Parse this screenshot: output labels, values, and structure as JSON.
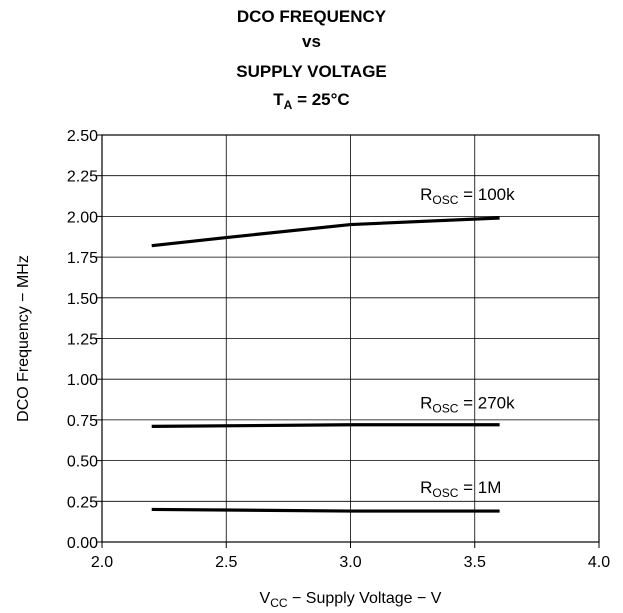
{
  "chart_data": {
    "type": "line",
    "title": {
      "line1": "DCO FREQUENCY",
      "line2": "vs",
      "line3": "SUPPLY VOLTAGE",
      "line4_main": "T",
      "line4_sub": "A",
      "line4_rest": " = 25°C"
    },
    "xlabel": {
      "main1": "V",
      "sub": "CC",
      "rest": " − Supply Voltage − V"
    },
    "ylabel": "DCO Frequency − MHz",
    "xlim": [
      2.0,
      4.0
    ],
    "ylim": [
      0.0,
      2.5
    ],
    "x_ticks": [
      "2.0",
      "2.5",
      "3.0",
      "3.5",
      "4.0"
    ],
    "y_ticks": [
      "0.00",
      "0.25",
      "0.50",
      "0.75",
      "1.00",
      "1.25",
      "1.50",
      "1.75",
      "2.00",
      "2.25",
      "2.50"
    ],
    "grid": true,
    "series": [
      {
        "label_main": "R",
        "label_sub": "OSC",
        "label_rest": " = 100k",
        "x": [
          2.2,
          2.5,
          3.0,
          3.6
        ],
        "y": [
          1.82,
          1.87,
          1.95,
          1.99
        ],
        "label_at": [
          3.28,
          2.1
        ]
      },
      {
        "label_main": "R",
        "label_sub": "OSC",
        "label_rest": " = 270k",
        "x": [
          2.2,
          3.0,
          3.6
        ],
        "y": [
          0.71,
          0.72,
          0.72
        ],
        "label_at": [
          3.28,
          0.82
        ]
      },
      {
        "label_main": "R",
        "label_sub": "OSC",
        "label_rest": " = 1M",
        "x": [
          2.2,
          3.0,
          3.6
        ],
        "y": [
          0.2,
          0.19,
          0.19
        ],
        "label_at": [
          3.28,
          0.3
        ]
      }
    ],
    "colors": {
      "line": "#000000",
      "grid": "#000000"
    }
  }
}
